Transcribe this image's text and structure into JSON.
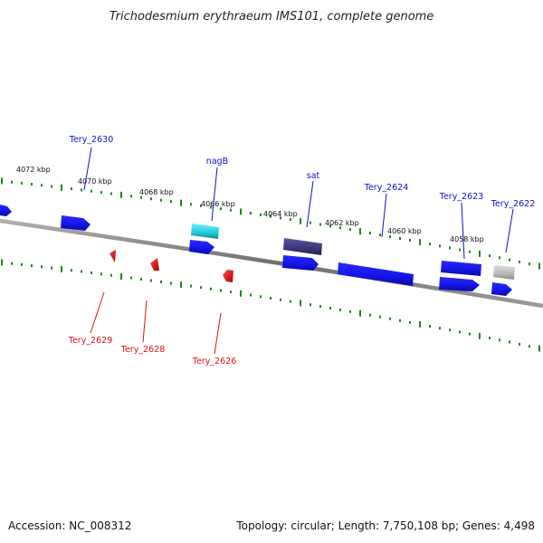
{
  "title": "Trichodesmium erythraeum IMS101, complete genome",
  "footer": {
    "accession": "Accession: NC_008312",
    "summary": "Topology: circular; Length: 7,750,108 bp; Genes: 4,498"
  },
  "colors": {
    "forward_gene": "#1414e6",
    "reverse_gene": "#e01010",
    "label_forward": "#1010cc",
    "label_reverse": "#dd1111",
    "tick": "#1a8a1a",
    "backbone": "#8a8a8a",
    "nagB": "#22c8d8",
    "sat": "#3a3678",
    "gray_gene": "#b8b8b8"
  },
  "ticks": [
    {
      "label": "4072 kbp"
    },
    {
      "label": "4070 kbp"
    },
    {
      "label": "4068 kbp"
    },
    {
      "label": "4066 kbp"
    },
    {
      "label": "4064 kbp"
    },
    {
      "label": "4062 kbp"
    },
    {
      "label": "4060 kbp"
    },
    {
      "label": "4058 kbp"
    }
  ],
  "labels": {
    "forward": [
      "Tery_2630",
      "nagB",
      "sat",
      "Tery_2624",
      "Tery_2623",
      "Tery_2622"
    ],
    "reverse": [
      "Tery_2629",
      "Tery_2628",
      "Tery_2626"
    ]
  }
}
